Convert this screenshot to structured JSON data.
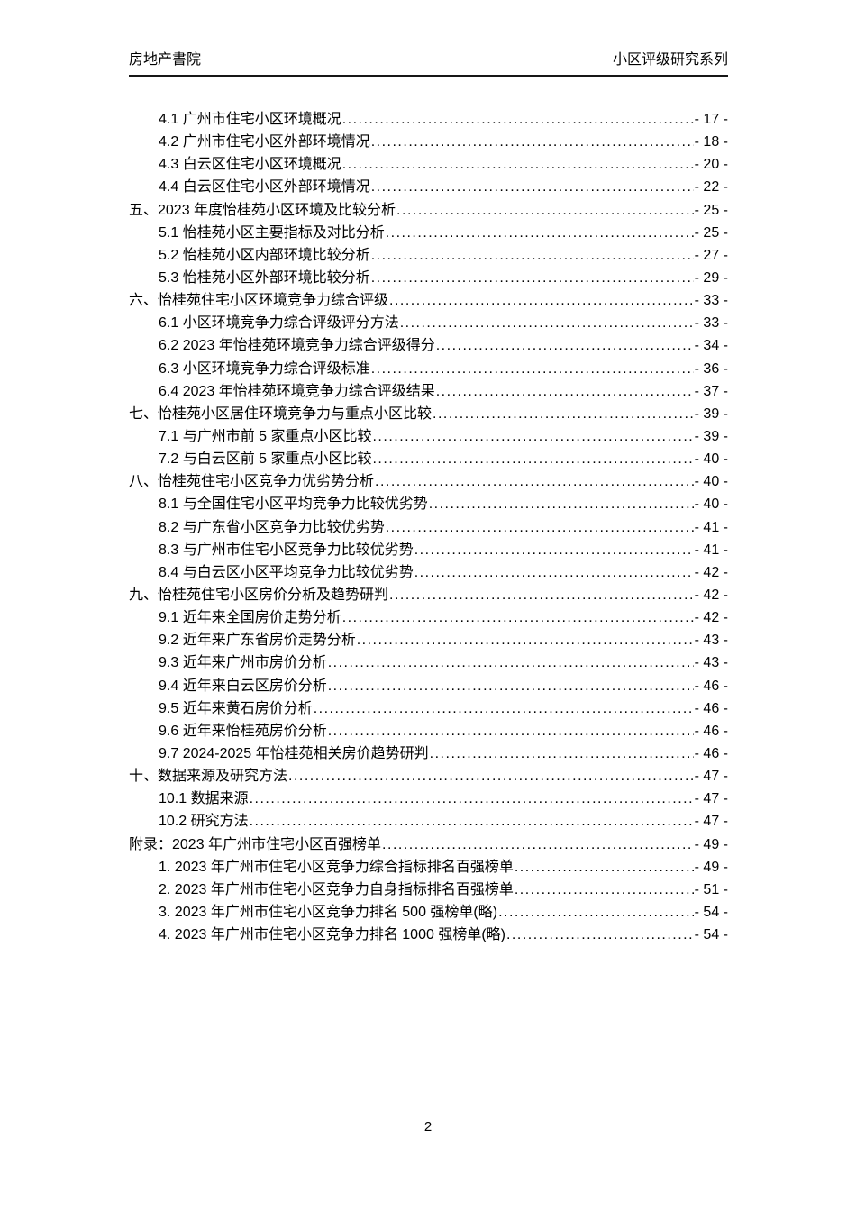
{
  "header": {
    "left_title": "房地产書院",
    "right_title": "小区评级研究系列"
  },
  "toc": {
    "entries": [
      {
        "level": 2,
        "label": "4.1 广州市住宅小区环境概况",
        "page": "- 17 -"
      },
      {
        "level": 2,
        "label": "4.2 广州市住宅小区外部环境情况",
        "page": "- 18 -"
      },
      {
        "level": 2,
        "label": "4.3 白云区住宅小区环境概况",
        "page": "- 20 -"
      },
      {
        "level": 2,
        "label": "4.4 白云区住宅小区外部环境情况",
        "page": "- 22 -"
      },
      {
        "level": 1,
        "label": "五、2023 年度怡桂苑小区环境及比较分析",
        "page": "- 25 -"
      },
      {
        "level": 2,
        "label": "5.1 怡桂苑小区主要指标及对比分析",
        "page": "- 25 -"
      },
      {
        "level": 2,
        "label": "5.2 怡桂苑小区内部环境比较分析",
        "page": "- 27 -"
      },
      {
        "level": 2,
        "label": "5.3 怡桂苑小区外部环境比较分析",
        "page": "- 29 -"
      },
      {
        "level": 1,
        "label": "六、怡桂苑住宅小区环境竞争力综合评级",
        "page": "- 33 -"
      },
      {
        "level": 2,
        "label": "6.1 小区环境竞争力综合评级评分方法",
        "page": "- 33 -"
      },
      {
        "level": 2,
        "label": "6.2 2023 年怡桂苑环境竞争力综合评级得分",
        "page": "- 34 -"
      },
      {
        "level": 2,
        "label": "6.3 小区环境竞争力综合评级标准",
        "page": "- 36 -"
      },
      {
        "level": 2,
        "label": "6.4 2023 年怡桂苑环境竞争力综合评级结果",
        "page": "- 37 -"
      },
      {
        "level": 1,
        "label": "七、怡桂苑小区居住环境竞争力与重点小区比较",
        "page": "- 39 -"
      },
      {
        "level": 2,
        "label": "7.1 与广州市前 5 家重点小区比较",
        "page": "- 39 -"
      },
      {
        "level": 2,
        "label": "7.2 与白云区前 5 家重点小区比较",
        "page": "- 40 -"
      },
      {
        "level": 1,
        "label": "八、怡桂苑住宅小区竞争力优劣势分析",
        "page": "- 40 -"
      },
      {
        "level": 2,
        "label": "8.1 与全国住宅小区平均竞争力比较优劣势",
        "page": "- 40 -"
      },
      {
        "level": 2,
        "label": "8.2 与广东省小区竞争力比较优劣势",
        "page": "- 41 -"
      },
      {
        "level": 2,
        "label": "8.3 与广州市住宅小区竞争力比较优劣势",
        "page": "- 41 -"
      },
      {
        "level": 2,
        "label": "8.4 与白云区小区平均竞争力比较优劣势",
        "page": "- 42 -"
      },
      {
        "level": 1,
        "label": "九、怡桂苑住宅小区房价分析及趋势研判",
        "page": "- 42 -"
      },
      {
        "level": 2,
        "label": "9.1 近年来全国房价走势分析",
        "page": "- 42 -"
      },
      {
        "level": 2,
        "label": "9.2 近年来广东省房价走势分析",
        "page": "- 43 -"
      },
      {
        "level": 2,
        "label": "9.3 近年来广州市房价分析",
        "page": "- 43 -"
      },
      {
        "level": 2,
        "label": "9.4 近年来白云区房价分析",
        "page": "- 46 -"
      },
      {
        "level": 2,
        "label": "9.5 近年来黄石房价分析",
        "page": "- 46 -"
      },
      {
        "level": 2,
        "label": "9.6 近年来怡桂苑房价分析",
        "page": "- 46 -"
      },
      {
        "level": 2,
        "label": "9.7 2024-2025 年怡桂苑相关房价趋势研判",
        "page": "- 46 -"
      },
      {
        "level": 1,
        "label": "十、数据来源及研究方法",
        "page": "- 47 -"
      },
      {
        "level": 2,
        "label": "10.1 数据来源",
        "page": "- 47 -"
      },
      {
        "level": 2,
        "label": "10.2 研究方法",
        "page": "- 47 -"
      },
      {
        "level": 1,
        "label": "附录：2023 年广州市住宅小区百强榜单",
        "page": "- 49 -"
      },
      {
        "level": 2,
        "label": "1. 2023 年广州市住宅小区竞争力综合指标排名百强榜单",
        "page": "- 49 -"
      },
      {
        "level": 2,
        "label": "2. 2023 年广州市住宅小区竞争力自身指标排名百强榜单",
        "page": "- 51 -"
      },
      {
        "level": 2,
        "label": "3. 2023 年广州市住宅小区竞争力排名 500 强榜单(略)",
        "page": "- 54 -"
      },
      {
        "level": 2,
        "label": "4. 2023 年广州市住宅小区竞争力排名 1000 强榜单(略)",
        "page": "- 54 -"
      }
    ]
  },
  "footer": {
    "page_number": "2"
  }
}
